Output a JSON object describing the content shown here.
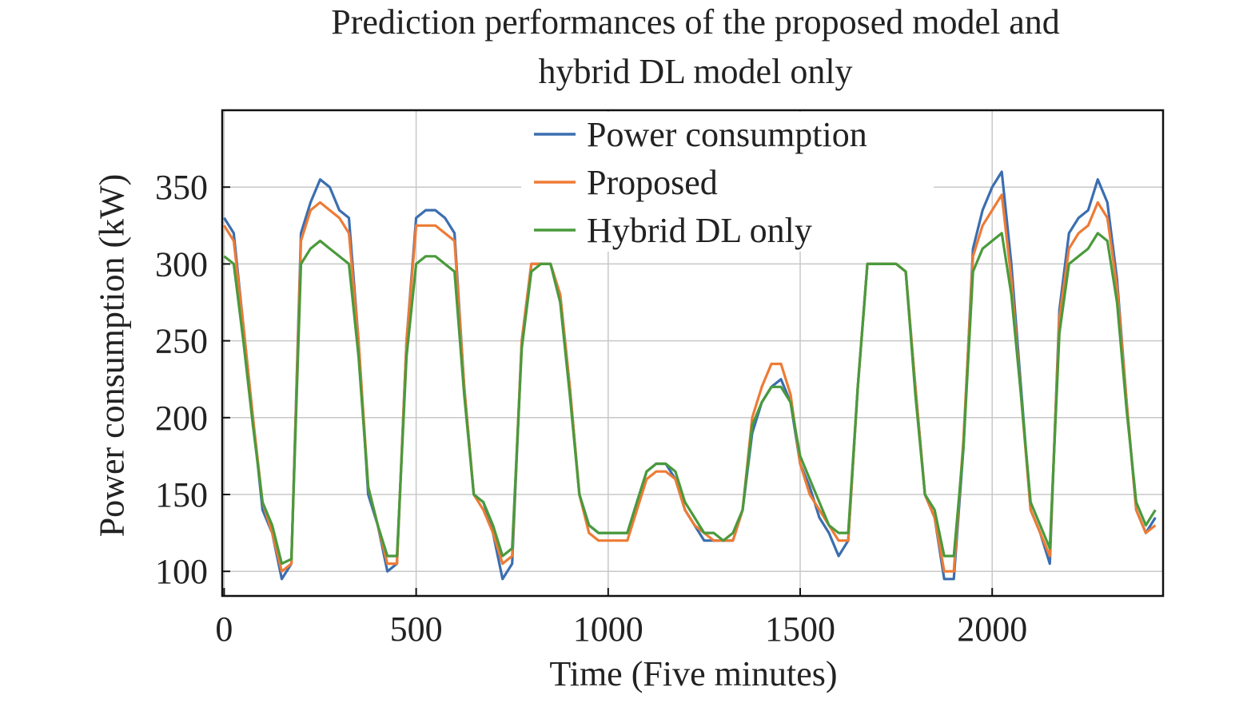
{
  "title_line1": "Prediction performances of the proposed model and",
  "title_line2": "hybrid DL model only",
  "chart_data": {
    "type": "line",
    "xlabel": "Time (Five minutes)",
    "ylabel": "Power consumption (kW)",
    "xlim": [
      -5,
      2445
    ],
    "ylim": [
      84,
      400
    ],
    "xticks": [
      0,
      500,
      1000,
      1500,
      2000
    ],
    "yticks": [
      100,
      150,
      200,
      250,
      300,
      350
    ],
    "grid": true,
    "legend_position": "top-center",
    "x": [
      0,
      25,
      50,
      75,
      100,
      125,
      150,
      175,
      200,
      225,
      250,
      275,
      300,
      325,
      350,
      375,
      400,
      425,
      450,
      475,
      500,
      525,
      550,
      575,
      600,
      625,
      650,
      675,
      700,
      725,
      750,
      775,
      800,
      825,
      850,
      875,
      900,
      925,
      950,
      975,
      1000,
      1025,
      1050,
      1075,
      1100,
      1125,
      1150,
      1175,
      1200,
      1225,
      1250,
      1275,
      1300,
      1325,
      1350,
      1375,
      1400,
      1425,
      1450,
      1475,
      1500,
      1525,
      1550,
      1575,
      1600,
      1625,
      1650,
      1675,
      1700,
      1725,
      1750,
      1775,
      1800,
      1825,
      1850,
      1875,
      1900,
      1925,
      1950,
      1975,
      2000,
      2025,
      2050,
      2075,
      2100,
      2125,
      2150,
      2175,
      2200,
      2225,
      2250,
      2275,
      2300,
      2325,
      2350,
      2375,
      2400,
      2425
    ],
    "series": [
      {
        "name": "Power consumption",
        "color": "#3b6eb0",
        "values": [
          330,
          320,
          260,
          200,
          140,
          125,
          95,
          105,
          320,
          340,
          355,
          350,
          335,
          330,
          250,
          150,
          130,
          100,
          105,
          250,
          330,
          335,
          335,
          330,
          320,
          220,
          150,
          145,
          125,
          95,
          105,
          250,
          300,
          300,
          300,
          280,
          220,
          150,
          130,
          125,
          125,
          125,
          125,
          145,
          165,
          170,
          170,
          160,
          140,
          130,
          120,
          120,
          120,
          120,
          140,
          190,
          210,
          220,
          225,
          210,
          170,
          155,
          135,
          125,
          110,
          120,
          220,
          300,
          300,
          300,
          300,
          295,
          220,
          150,
          135,
          95,
          95,
          180,
          310,
          335,
          350,
          360,
          300,
          220,
          140,
          125,
          105,
          270,
          320,
          330,
          335,
          355,
          340,
          290,
          210,
          140,
          125,
          135
        ]
      },
      {
        "name": "Proposed",
        "color": "#ee7b36",
        "values": [
          325,
          315,
          260,
          200,
          145,
          125,
          100,
          105,
          315,
          335,
          340,
          335,
          330,
          320,
          250,
          155,
          130,
          105,
          105,
          250,
          325,
          325,
          325,
          320,
          315,
          220,
          150,
          140,
          125,
          105,
          110,
          250,
          300,
          300,
          300,
          280,
          220,
          150,
          125,
          120,
          120,
          120,
          120,
          140,
          160,
          165,
          165,
          160,
          140,
          130,
          125,
          120,
          120,
          120,
          140,
          200,
          220,
          235,
          235,
          215,
          170,
          150,
          140,
          130,
          120,
          120,
          220,
          300,
          300,
          300,
          300,
          295,
          220,
          150,
          135,
          100,
          100,
          185,
          305,
          325,
          335,
          345,
          290,
          215,
          140,
          125,
          110,
          265,
          310,
          320,
          325,
          340,
          330,
          285,
          210,
          140,
          125,
          130
        ]
      },
      {
        "name": "Hybrid DL only",
        "color": "#4a9a3c",
        "values": [
          305,
          300,
          250,
          195,
          145,
          130,
          105,
          108,
          300,
          310,
          315,
          310,
          305,
          300,
          240,
          155,
          130,
          110,
          110,
          240,
          300,
          305,
          305,
          300,
          295,
          215,
          150,
          145,
          130,
          110,
          115,
          245,
          295,
          300,
          300,
          275,
          215,
          150,
          130,
          125,
          125,
          125,
          125,
          145,
          165,
          170,
          170,
          165,
          145,
          135,
          125,
          125,
          120,
          125,
          140,
          195,
          210,
          220,
          220,
          210,
          175,
          160,
          145,
          130,
          125,
          125,
          220,
          300,
          300,
          300,
          300,
          295,
          215,
          150,
          140,
          110,
          110,
          180,
          295,
          310,
          315,
          320,
          280,
          215,
          145,
          130,
          115,
          255,
          300,
          305,
          310,
          320,
          315,
          275,
          205,
          145,
          130,
          140
        ]
      }
    ]
  }
}
